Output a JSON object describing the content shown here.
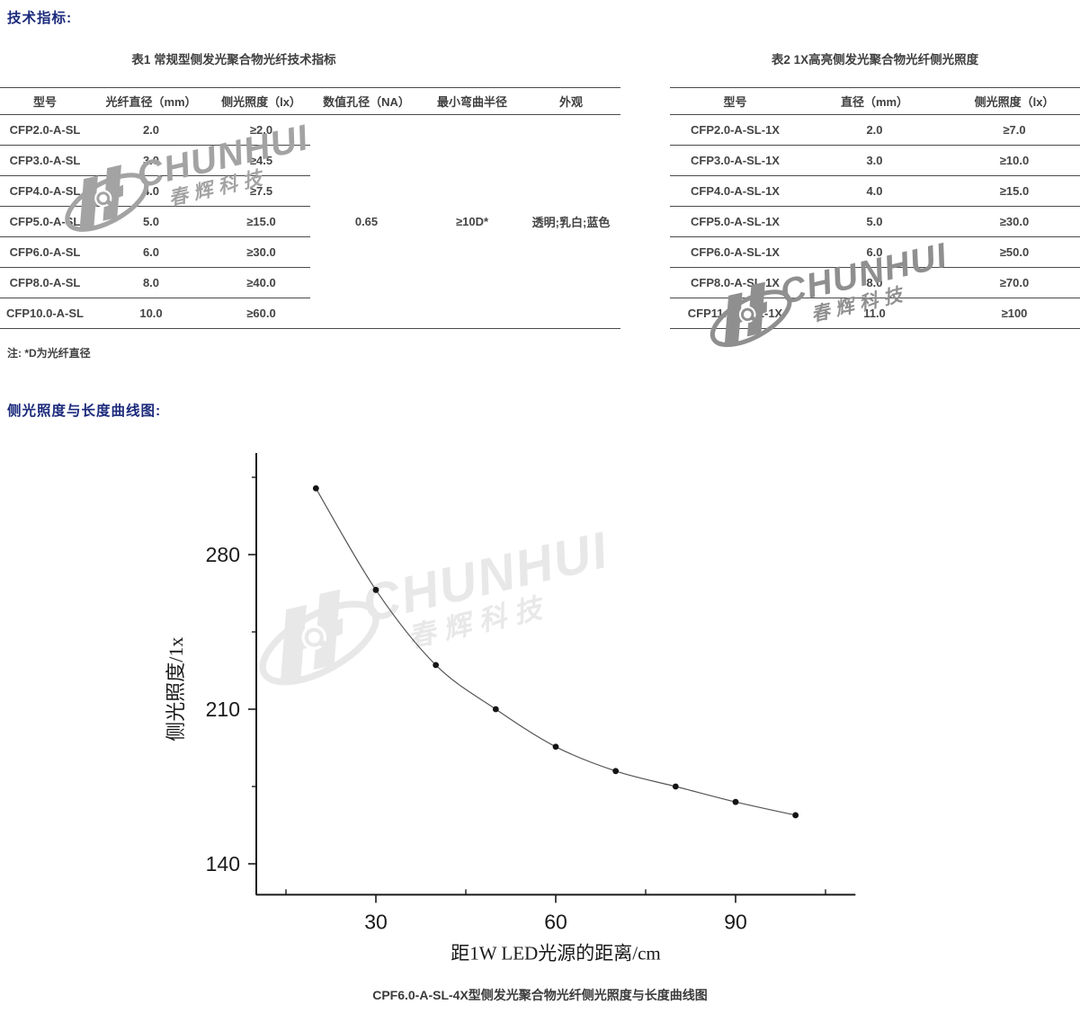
{
  "page": {
    "heading_specs": "技术指标:",
    "heading_curve": "侧光照度与长度曲线图:",
    "note": "注: *D为光纤直径"
  },
  "table1": {
    "title": "表1 常规型侧发光聚合物光纤技术指标",
    "headers": [
      "型号",
      "光纤直径（mm）",
      "侧光照度（lx）",
      "数值孔径（NA）",
      "最小弯曲半径",
      "外观"
    ],
    "rows": [
      [
        "CFP2.0-A-SL",
        "2.0",
        "≥2.0"
      ],
      [
        "CFP3.0-A-SL",
        "3.0",
        "≥4.5"
      ],
      [
        "CFP4.0-A-SL",
        "4.0",
        "≥7.5"
      ],
      [
        "CFP5.0-A-SL",
        "5.0",
        "≥15.0"
      ],
      [
        "CFP6.0-A-SL",
        "6.0",
        "≥30.0"
      ],
      [
        "CFP8.0-A-SL",
        "8.0",
        "≥40.0"
      ],
      [
        "CFP10.0-A-SL",
        "10.0",
        "≥60.0"
      ]
    ],
    "merged": {
      "numerical_aperture": "0.65",
      "min_bend_radius": "≥10D*",
      "appearance": "透明;乳白;蓝色"
    }
  },
  "table2": {
    "title": "表2 1X高亮侧发光聚合物光纤侧光照度",
    "headers": [
      "型号",
      "直径（mm）",
      "侧光照度（lx）"
    ],
    "rows": [
      [
        "CFP2.0-A-SL-1X",
        "2.0",
        "≥7.0"
      ],
      [
        "CFP3.0-A-SL-1X",
        "3.0",
        "≥10.0"
      ],
      [
        "CFP4.0-A-SL-1X",
        "4.0",
        "≥15.0"
      ],
      [
        "CFP5.0-A-SL-1X",
        "5.0",
        "≥30.0"
      ],
      [
        "CFP6.0-A-SL-1X",
        "6.0",
        "≥50.0"
      ],
      [
        "CFP8.0-A-SL-1X",
        "8.0",
        "≥70.0"
      ],
      [
        "CFP11.0-A-SL-1X",
        "11.0",
        "≥100"
      ]
    ]
  },
  "watermark": {
    "brand": "CHUNHUI",
    "brand_cn": "春辉科技"
  },
  "chart_data": {
    "type": "line",
    "title": "CPF6.0-A-SL-4X型侧发光聚合物光纤侧光照度与长度曲线图",
    "x": [
      20,
      30,
      40,
      50,
      60,
      70,
      80,
      90,
      100
    ],
    "y": [
      310,
      264,
      230,
      210,
      193,
      182,
      175,
      168,
      162
    ],
    "xlabel": "距1W LED光源的距离/cm",
    "ylabel": "侧光照度/1x",
    "x_major_ticks": [
      30,
      60,
      90
    ],
    "x_minor_ticks": [
      15,
      45,
      75,
      105
    ],
    "y_major_ticks": [
      280,
      210,
      140
    ],
    "y_minor_ticks": [
      315,
      245,
      175
    ],
    "xlim": [
      10,
      110
    ],
    "ylim": [
      126,
      326
    ],
    "grid": false,
    "legend": null,
    "marker": "filled-circle",
    "colors": {
      "axis": "#1a1a1a",
      "curve": "#555555",
      "point": "#141414"
    }
  }
}
